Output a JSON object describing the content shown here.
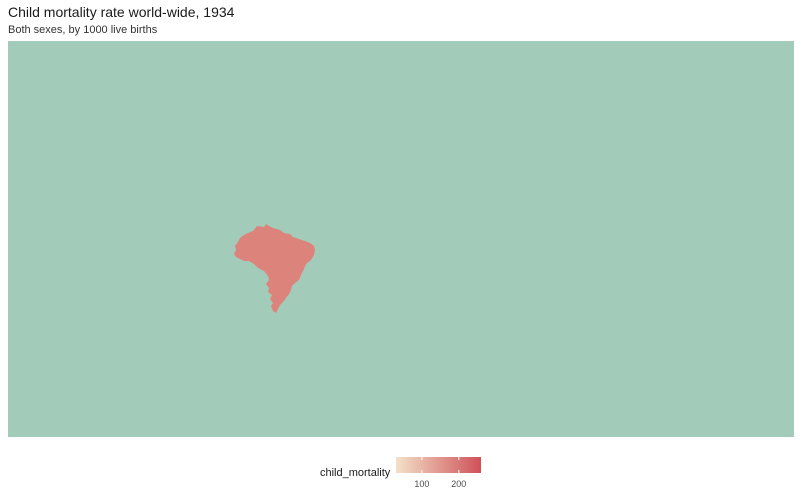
{
  "title": "Child mortality rate world-wide, 1934",
  "subtitle": "Both sexes, by 1000 live births",
  "map": {
    "background_color": "#a2cbb9",
    "regions": [
      {
        "name": "Brazil",
        "child_mortality": 165,
        "fill": "#dc847c"
      }
    ]
  },
  "legend": {
    "title": "child_mortality",
    "color_low": "#f3e1c8",
    "color_high": "#cf5159",
    "domain": [
      30,
      260
    ],
    "ticks": [
      {
        "value": 100,
        "label": "100"
      },
      {
        "value": 200,
        "label": "200"
      }
    ]
  }
}
